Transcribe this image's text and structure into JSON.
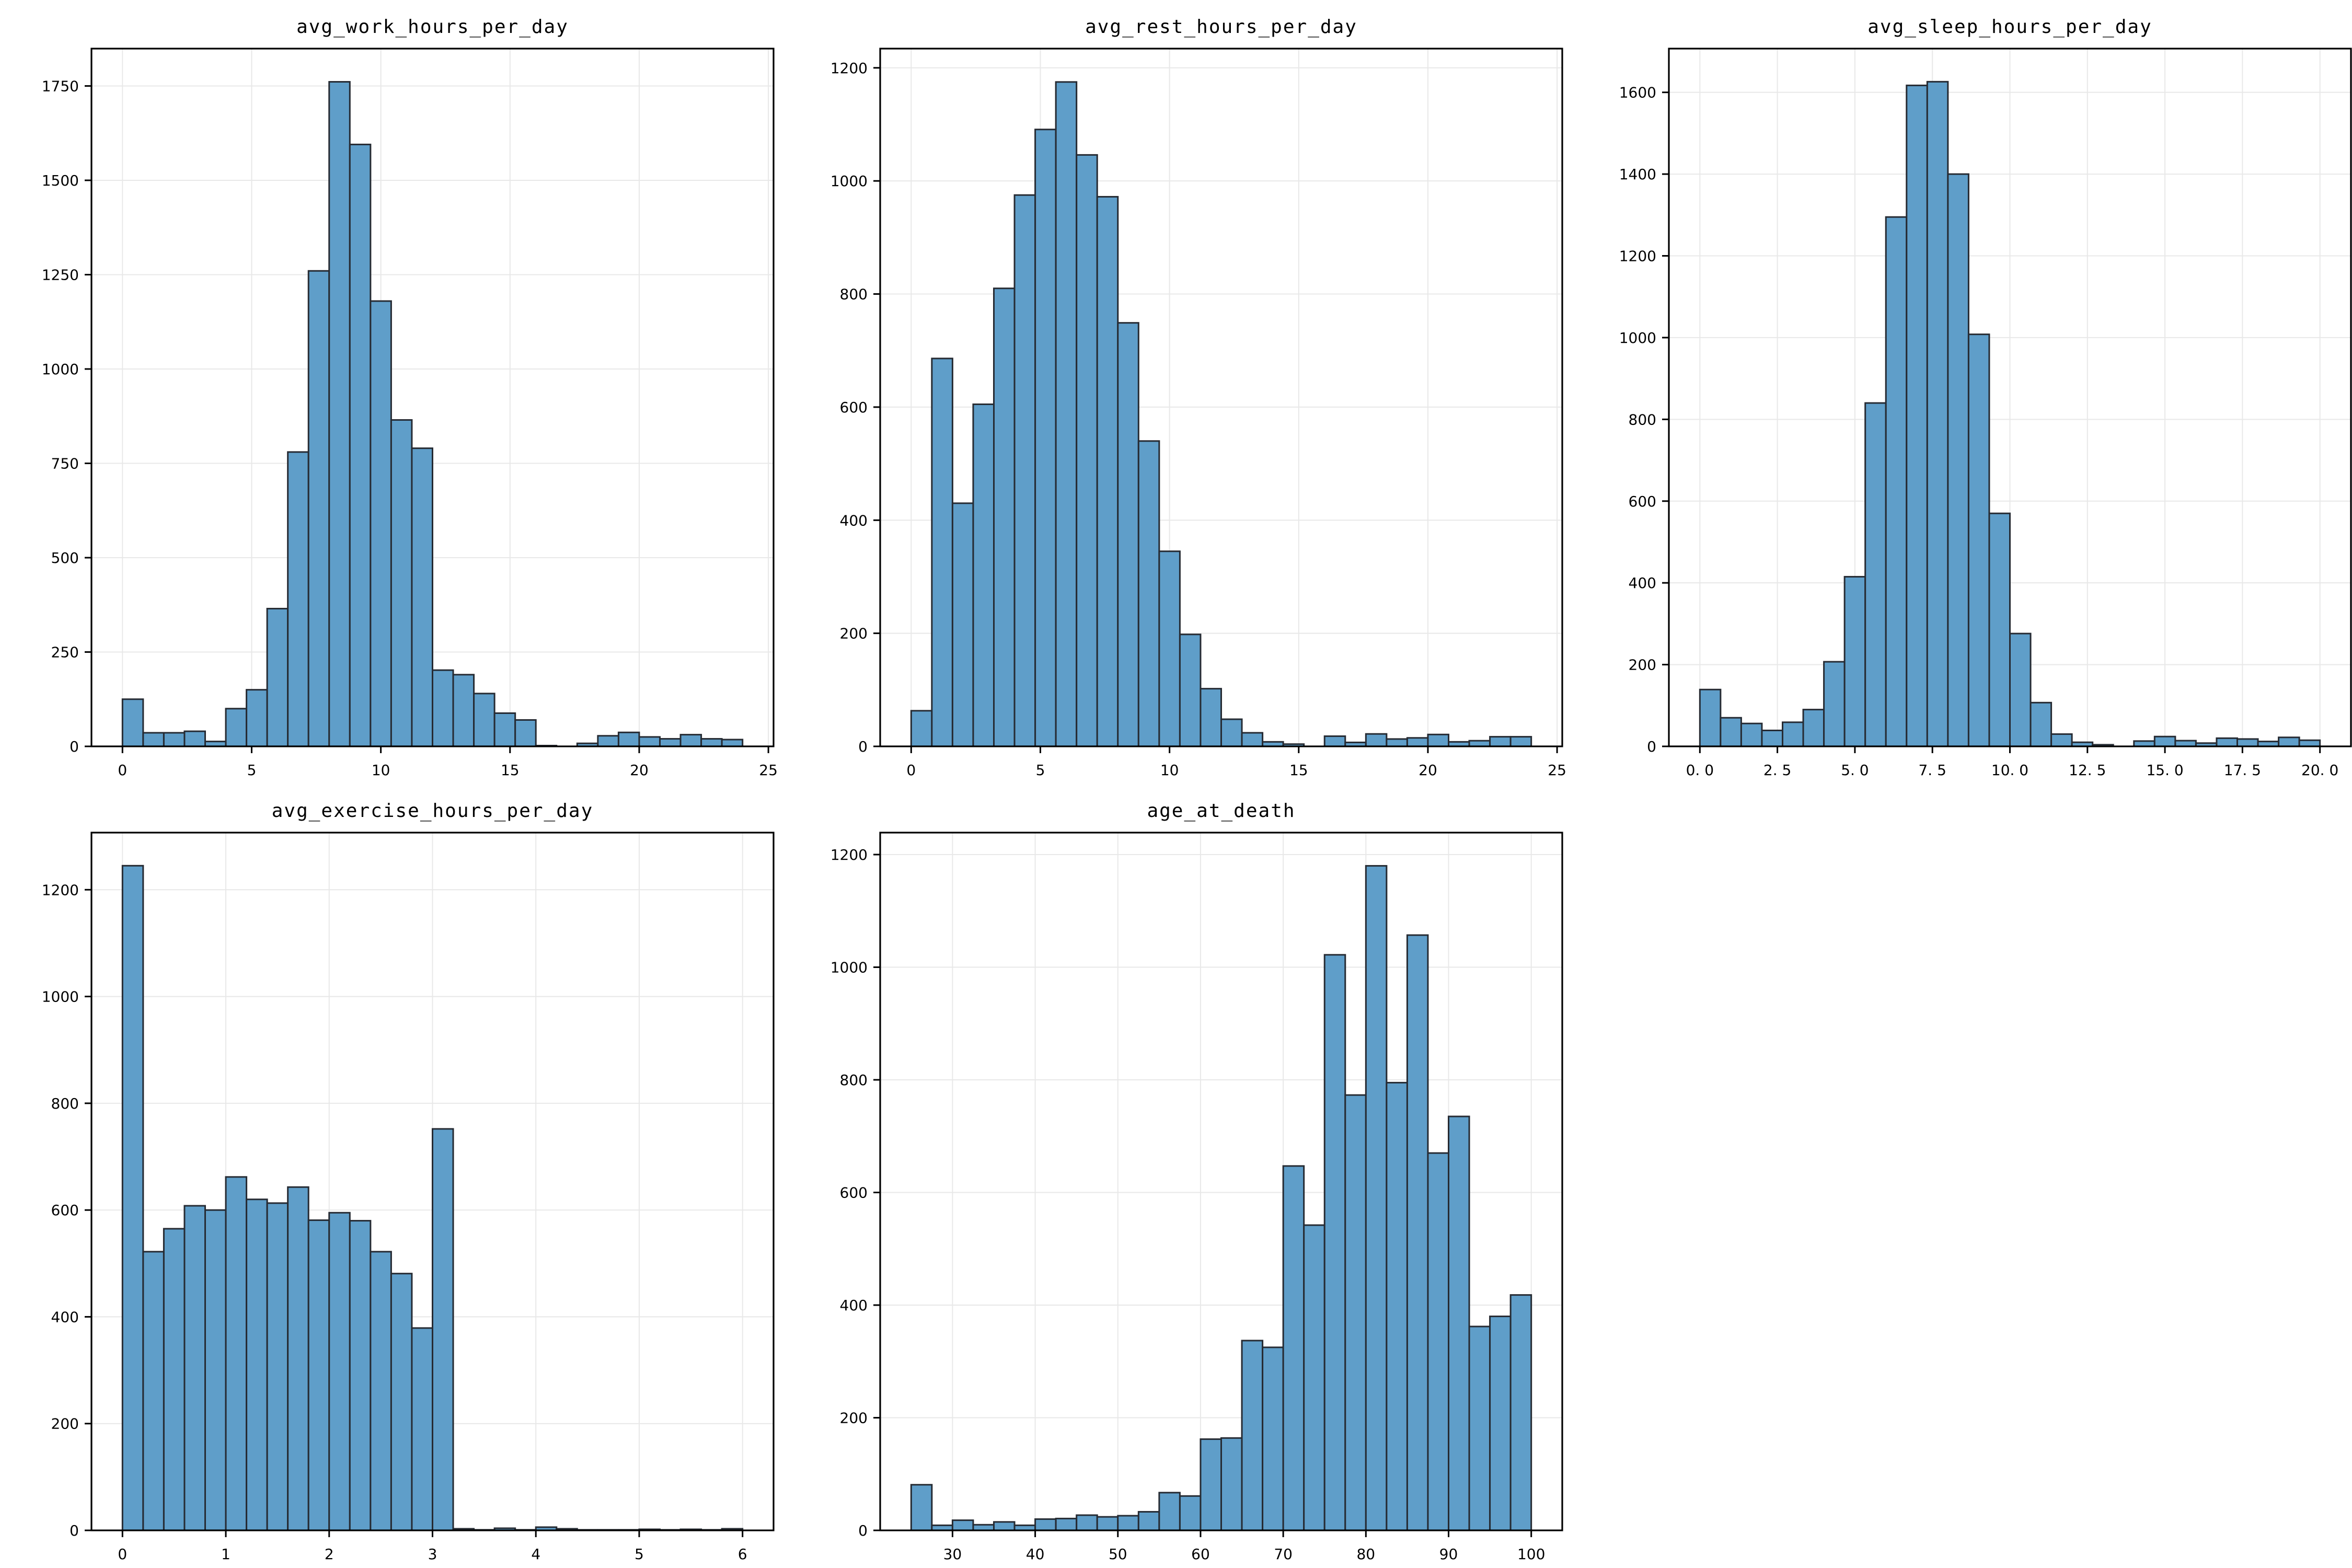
{
  "figure": {
    "background": "#ffffff",
    "bar_fill": "#5f9ec9",
    "bar_edge": "#262b33",
    "grid_color": "#e8e8e8",
    "axis_color": "#000000",
    "text_color": "#000000"
  },
  "chart_data": [
    {
      "type": "bar",
      "subtype": "histogram",
      "title": "avg_work_hours_per_day",
      "bin_start": 0,
      "bin_width": 0.8,
      "counts": [
        125,
        36,
        36,
        40,
        13,
        100,
        150,
        365,
        780,
        1260,
        1761,
        1595,
        1180,
        865,
        790,
        202,
        190,
        140,
        88,
        70,
        2,
        0,
        8,
        28,
        37,
        25,
        20,
        31,
        20,
        18
      ],
      "xlim": [
        -1.2,
        25.2
      ],
      "ylim": [
        0,
        1849
      ],
      "xtick_values": [
        0,
        5,
        10,
        15,
        20,
        25
      ],
      "xtick_labels": [
        "0",
        "5",
        "10",
        "15",
        "20",
        "25"
      ],
      "ytick_values": [
        0,
        250,
        500,
        750,
        1000,
        1250,
        1500,
        1750
      ],
      "ytick_labels": [
        "0",
        "250",
        "500",
        "750",
        "1000",
        "1250",
        "1500",
        "1750"
      ],
      "grid": true,
      "legend": "none"
    },
    {
      "type": "bar",
      "subtype": "histogram",
      "title": "avg_rest_hours_per_day",
      "bin_start": 0,
      "bin_width": 0.8,
      "counts": [
        63,
        686,
        430,
        605,
        810,
        975,
        1091,
        1175,
        1046,
        972,
        749,
        540,
        345,
        198,
        102,
        48,
        24,
        8,
        4,
        0,
        18,
        7,
        22,
        13,
        15,
        21,
        8,
        10,
        17,
        17
      ],
      "xlim": [
        -1.2,
        25.2
      ],
      "ylim": [
        0,
        1234
      ],
      "xtick_values": [
        0,
        5,
        10,
        15,
        20,
        25
      ],
      "xtick_labels": [
        "0",
        "5",
        "10",
        "15",
        "20",
        "25"
      ],
      "ytick_values": [
        0,
        200,
        400,
        600,
        800,
        1000,
        1200
      ],
      "ytick_labels": [
        "0",
        "200",
        "400",
        "600",
        "800",
        "1000",
        "1200"
      ],
      "grid": true,
      "legend": "none"
    },
    {
      "type": "bar",
      "subtype": "histogram",
      "title": "avg_sleep_hours_per_day",
      "bin_start": 0,
      "bin_width": 0.6666666667,
      "counts": [
        139,
        70,
        56,
        39,
        59,
        90,
        207,
        415,
        840,
        1295,
        1617,
        1626,
        1400,
        1008,
        570,
        276,
        107,
        30,
        10,
        4,
        0,
        13,
        24,
        14,
        8,
        20,
        18,
        12,
        22,
        15
      ],
      "xlim": [
        -1,
        21
      ],
      "ylim": [
        0,
        1707
      ],
      "xtick_values": [
        0,
        2.5,
        5,
        7.5,
        10,
        12.5,
        15,
        17.5,
        20
      ],
      "xtick_labels": [
        "0. 0",
        "2. 5",
        "5. 0",
        "7. 5",
        "10. 0",
        "12. 5",
        "15. 0",
        "17. 5",
        "20. 0"
      ],
      "ytick_values": [
        0,
        200,
        400,
        600,
        800,
        1000,
        1200,
        1400,
        1600
      ],
      "ytick_labels": [
        "0",
        "200",
        "400",
        "600",
        "800",
        "1000",
        "1200",
        "1400",
        "1600"
      ],
      "grid": true,
      "legend": "none"
    },
    {
      "type": "bar",
      "subtype": "histogram",
      "title": "avg_exercise_hours_per_day",
      "bin_start": 0,
      "bin_width": 0.2,
      "counts": [
        1245,
        522,
        565,
        608,
        600,
        662,
        620,
        613,
        643,
        581,
        595,
        580,
        522,
        481,
        379,
        752,
        3,
        1,
        4,
        1,
        6,
        3,
        1,
        1,
        1,
        2,
        1,
        2,
        1,
        3
      ],
      "xlim": [
        -0.3,
        6.3
      ],
      "ylim": [
        0,
        1307
      ],
      "xtick_values": [
        0,
        1,
        2,
        3,
        4,
        5,
        6
      ],
      "xtick_labels": [
        "0",
        "1",
        "2",
        "3",
        "4",
        "5",
        "6"
      ],
      "ytick_values": [
        0,
        200,
        400,
        600,
        800,
        1000,
        1200
      ],
      "ytick_labels": [
        "0",
        "200",
        "400",
        "600",
        "800",
        "1000",
        "1200"
      ],
      "grid": true,
      "legend": "none"
    },
    {
      "type": "bar",
      "subtype": "histogram",
      "title": "age_at_death",
      "bin_start": 25,
      "bin_width": 2.5,
      "counts": [
        81,
        9,
        18,
        10,
        15,
        9,
        20,
        21,
        27,
        24,
        26,
        33,
        67,
        61,
        162,
        164,
        337,
        325,
        647,
        542,
        1022,
        773,
        1180,
        795,
        1057,
        670,
        735,
        362,
        380,
        418
      ],
      "xlim": [
        21.25,
        103.75
      ],
      "ylim": [
        0,
        1239
      ],
      "xtick_values": [
        30,
        40,
        50,
        60,
        70,
        80,
        90,
        100
      ],
      "xtick_labels": [
        "30",
        "40",
        "50",
        "60",
        "70",
        "80",
        "90",
        "100"
      ],
      "ytick_values": [
        0,
        200,
        400,
        600,
        800,
        1000,
        1200
      ],
      "ytick_labels": [
        "0",
        "200",
        "400",
        "600",
        "800",
        "1000",
        "1200"
      ],
      "grid": true,
      "legend": "none"
    }
  ]
}
